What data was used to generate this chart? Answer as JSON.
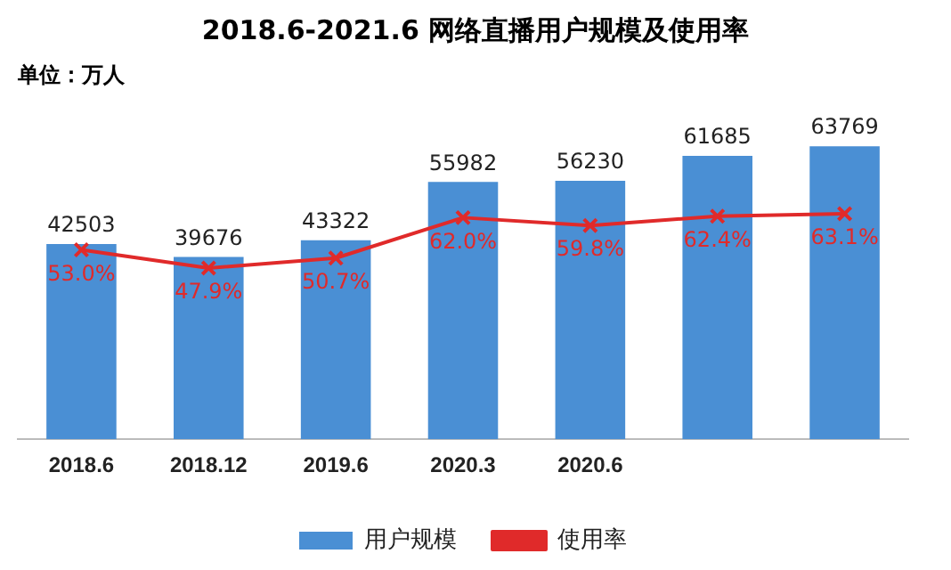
{
  "chart_data": {
    "type": "bar",
    "title": "2018.6-2021.6 网络直播用户规模及使用率",
    "annotations": [
      "单位：万人"
    ],
    "categories": [
      "2018.6",
      "2018.12",
      "2019.6",
      "2020.3",
      "2020.6",
      null,
      null
    ],
    "series": [
      {
        "name": "用户规模",
        "color": "#4a8fd4",
        "values": [
          42503,
          39676,
          43322,
          55982,
          56230,
          61685,
          63769
        ],
        "value_labels": [
          "42503",
          "39676",
          "43322",
          "55982",
          "56230",
          "61685",
          "63769"
        ]
      },
      {
        "name": "使用率",
        "type": "line",
        "axis": "y2",
        "color": "#e02a2a",
        "marker": "cross",
        "values": [
          53.0,
          47.9,
          50.7,
          62.0,
          59.8,
          62.4,
          63.1
        ],
        "value_labels": [
          "53.0%",
          "47.9%",
          "50.7%",
          "62.0%",
          "59.8%",
          "62.4%",
          "63.1%"
        ]
      }
    ],
    "tick_labels": "x",
    "grid": false,
    "legend": "bottom"
  }
}
